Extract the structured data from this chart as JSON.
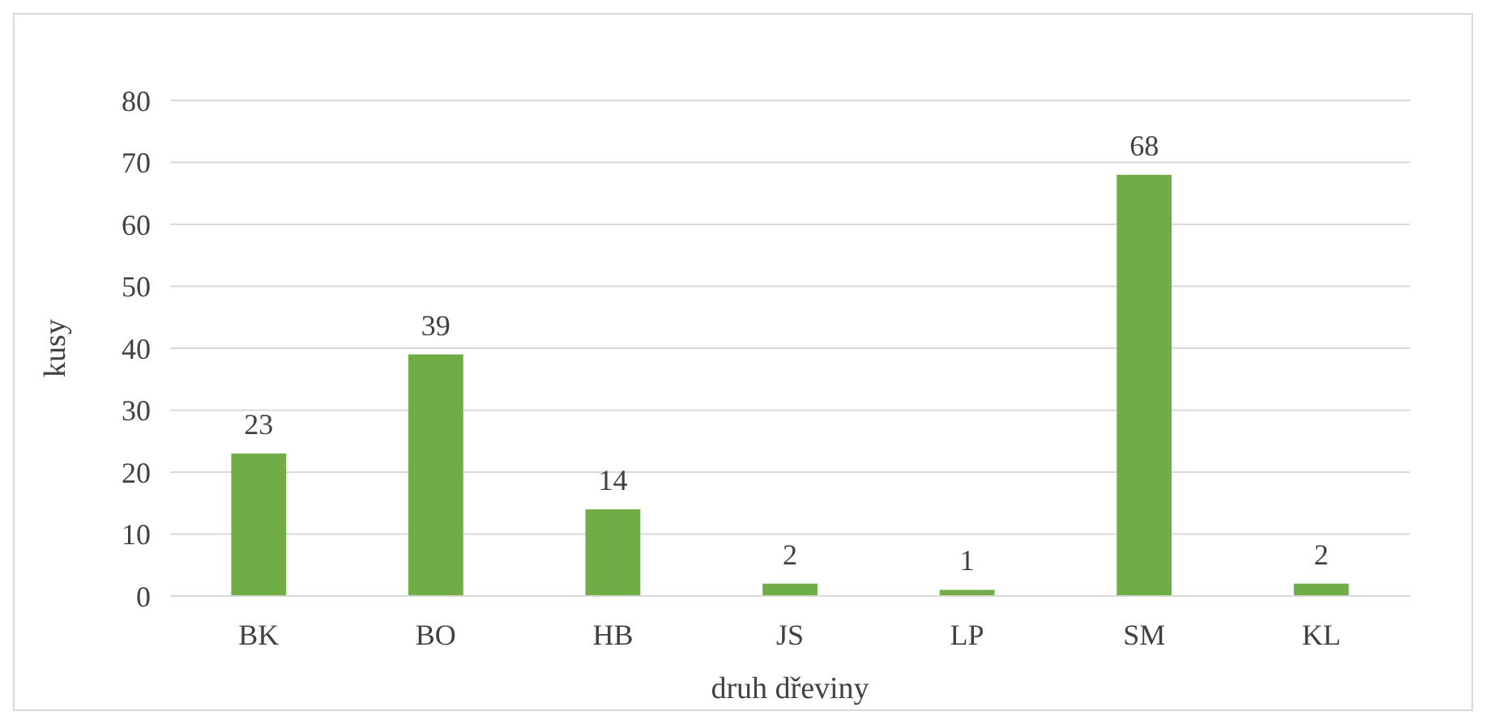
{
  "chart_data": {
    "type": "bar",
    "xlabel": "druh dřeviny",
    "ylabel": "kusy",
    "categories": [
      "BK",
      "BO",
      "HB",
      "JS",
      "LP",
      "SM",
      "KL"
    ],
    "values": [
      23,
      39,
      14,
      2,
      1,
      68,
      2
    ],
    "color": "#70ad47",
    "ylim": [
      0,
      80
    ],
    "yticks": [
      0,
      10,
      20,
      30,
      40,
      50,
      60,
      70,
      80
    ],
    "grid": "y",
    "data_labels": true
  }
}
